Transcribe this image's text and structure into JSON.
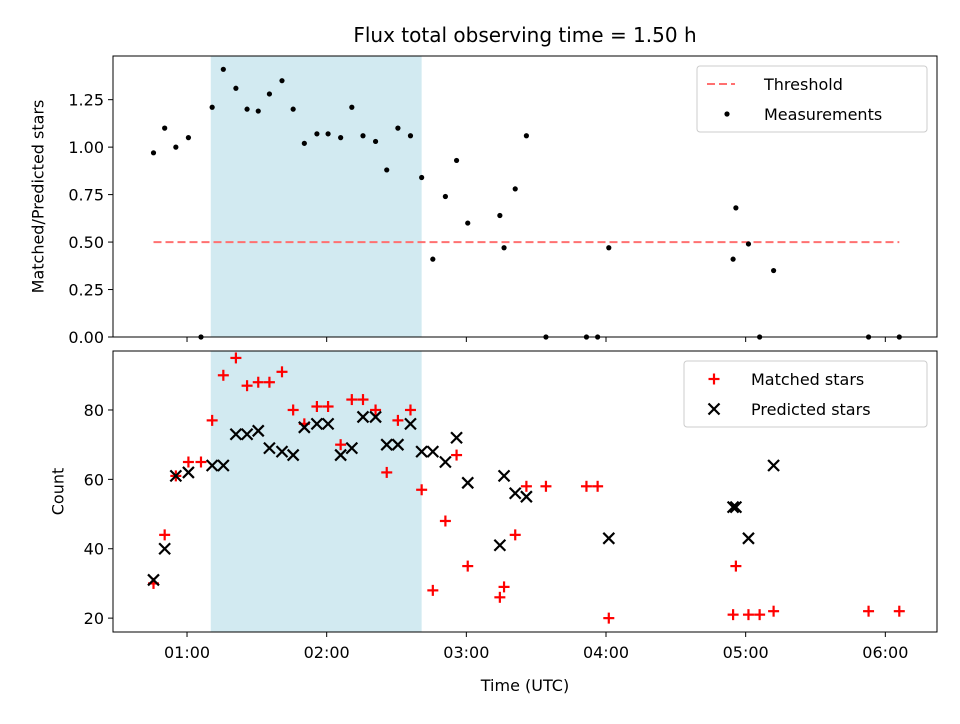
{
  "chart_data": {
    "title": "Flux total observing time = 1.50 h",
    "xlabel": "Time (UTC)",
    "x_ticks": [
      "01:00",
      "02:00",
      "03:00",
      "04:00",
      "05:00",
      "06:00"
    ],
    "x_tick_hours": [
      1,
      2,
      3,
      4,
      5,
      6
    ],
    "xlim_hours": [
      0.47,
      6.37
    ],
    "shaded_band_hours": [
      1.17,
      2.68
    ],
    "colors": {
      "band": "#add8e6",
      "threshold": "#ff7070",
      "measurements": "#000000",
      "matched": "#ff0000",
      "predicted": "#000000"
    },
    "panels": [
      {
        "type": "scatter",
        "ylabel": "Matched/Predicted stars",
        "ylim": [
          0,
          1.48
        ],
        "y_ticks": [
          "0.00",
          "0.25",
          "0.50",
          "0.75",
          "1.00",
          "1.25"
        ],
        "y_tick_values": [
          0,
          0.25,
          0.5,
          0.75,
          1.0,
          1.25
        ],
        "legend": "upper right",
        "threshold": {
          "name": "Threshold",
          "y": 0.5,
          "x_range": [
            0.76,
            6.1
          ]
        },
        "series": [
          {
            "name": "Measurements",
            "marker": "dot",
            "points": [
              [
                0.76,
                0.97
              ],
              [
                0.84,
                1.1
              ],
              [
                0.92,
                1.0
              ],
              [
                1.01,
                1.05
              ],
              [
                1.1,
                0.0
              ],
              [
                1.18,
                1.21
              ],
              [
                1.26,
                1.41
              ],
              [
                1.35,
                1.31
              ],
              [
                1.43,
                1.2
              ],
              [
                1.51,
                1.19
              ],
              [
                1.59,
                1.28
              ],
              [
                1.68,
                1.35
              ],
              [
                1.76,
                1.2
              ],
              [
                1.84,
                1.02
              ],
              [
                1.93,
                1.07
              ],
              [
                2.01,
                1.07
              ],
              [
                2.1,
                1.05
              ],
              [
                2.18,
                1.21
              ],
              [
                2.26,
                1.06
              ],
              [
                2.35,
                1.03
              ],
              [
                2.43,
                0.88
              ],
              [
                2.51,
                1.1
              ],
              [
                2.6,
                1.06
              ],
              [
                2.68,
                0.84
              ],
              [
                2.76,
                0.41
              ],
              [
                2.85,
                0.74
              ],
              [
                2.93,
                0.93
              ],
              [
                3.01,
                0.6
              ],
              [
                3.24,
                0.64
              ],
              [
                3.27,
                0.47
              ],
              [
                3.35,
                0.78
              ],
              [
                3.43,
                1.06
              ],
              [
                3.57,
                0.0
              ],
              [
                3.86,
                0.0
              ],
              [
                3.94,
                0.0
              ],
              [
                4.02,
                0.47
              ],
              [
                4.91,
                0.41
              ],
              [
                4.93,
                0.68
              ],
              [
                5.02,
                0.49
              ],
              [
                5.1,
                0.0
              ],
              [
                5.2,
                0.35
              ],
              [
                5.88,
                0.0
              ],
              [
                6.1,
                0.0
              ]
            ]
          }
        ]
      },
      {
        "type": "scatter",
        "ylabel": "Count",
        "ylim": [
          16,
          97
        ],
        "y_ticks": [
          "20",
          "40",
          "60",
          "80"
        ],
        "y_tick_values": [
          20,
          40,
          60,
          80
        ],
        "legend": "upper right",
        "series": [
          {
            "name": "Matched stars",
            "marker": "plus",
            "points": [
              [
                0.76,
                30
              ],
              [
                0.84,
                44
              ],
              [
                0.92,
                61
              ],
              [
                1.01,
                65
              ],
              [
                1.1,
                65
              ],
              [
                1.18,
                77
              ],
              [
                1.26,
                90
              ],
              [
                1.35,
                95
              ],
              [
                1.43,
                87
              ],
              [
                1.51,
                88
              ],
              [
                1.59,
                88
              ],
              [
                1.68,
                91
              ],
              [
                1.76,
                80
              ],
              [
                1.84,
                76
              ],
              [
                1.93,
                81
              ],
              [
                2.01,
                81
              ],
              [
                2.1,
                70
              ],
              [
                2.18,
                83
              ],
              [
                2.26,
                83
              ],
              [
                2.35,
                80
              ],
              [
                2.43,
                62
              ],
              [
                2.51,
                77
              ],
              [
                2.6,
                80
              ],
              [
                2.68,
                57
              ],
              [
                2.76,
                28
              ],
              [
                2.85,
                48
              ],
              [
                2.93,
                67
              ],
              [
                3.01,
                35
              ],
              [
                3.24,
                26
              ],
              [
                3.27,
                29
              ],
              [
                3.35,
                44
              ],
              [
                3.43,
                58
              ],
              [
                3.57,
                58
              ],
              [
                3.86,
                58
              ],
              [
                3.94,
                58
              ],
              [
                4.02,
                20
              ],
              [
                4.91,
                21
              ],
              [
                4.93,
                35
              ],
              [
                5.02,
                21
              ],
              [
                5.1,
                21
              ],
              [
                5.2,
                22
              ],
              [
                5.88,
                22
              ],
              [
                6.1,
                22
              ]
            ]
          },
          {
            "name": "Predicted stars",
            "marker": "x",
            "points": [
              [
                0.76,
                31
              ],
              [
                0.84,
                40
              ],
              [
                0.92,
                61
              ],
              [
                1.01,
                62
              ],
              [
                1.18,
                64
              ],
              [
                1.26,
                64
              ],
              [
                1.35,
                73
              ],
              [
                1.43,
                73
              ],
              [
                1.51,
                74
              ],
              [
                1.59,
                69
              ],
              [
                1.68,
                68
              ],
              [
                1.76,
                67
              ],
              [
                1.84,
                75
              ],
              [
                1.93,
                76
              ],
              [
                2.01,
                76
              ],
              [
                2.1,
                67
              ],
              [
                2.18,
                69
              ],
              [
                2.26,
                78
              ],
              [
                2.35,
                78
              ],
              [
                2.43,
                70
              ],
              [
                2.51,
                70
              ],
              [
                2.6,
                76
              ],
              [
                2.68,
                68
              ],
              [
                2.76,
                68
              ],
              [
                2.85,
                65
              ],
              [
                2.93,
                72
              ],
              [
                3.01,
                59
              ],
              [
                3.24,
                41
              ],
              [
                3.27,
                61
              ],
              [
                3.35,
                56
              ],
              [
                3.43,
                55
              ],
              [
                4.02,
                43
              ],
              [
                4.91,
                52
              ],
              [
                4.93,
                52
              ],
              [
                5.02,
                43
              ],
              [
                5.2,
                64
              ]
            ]
          }
        ]
      }
    ]
  }
}
